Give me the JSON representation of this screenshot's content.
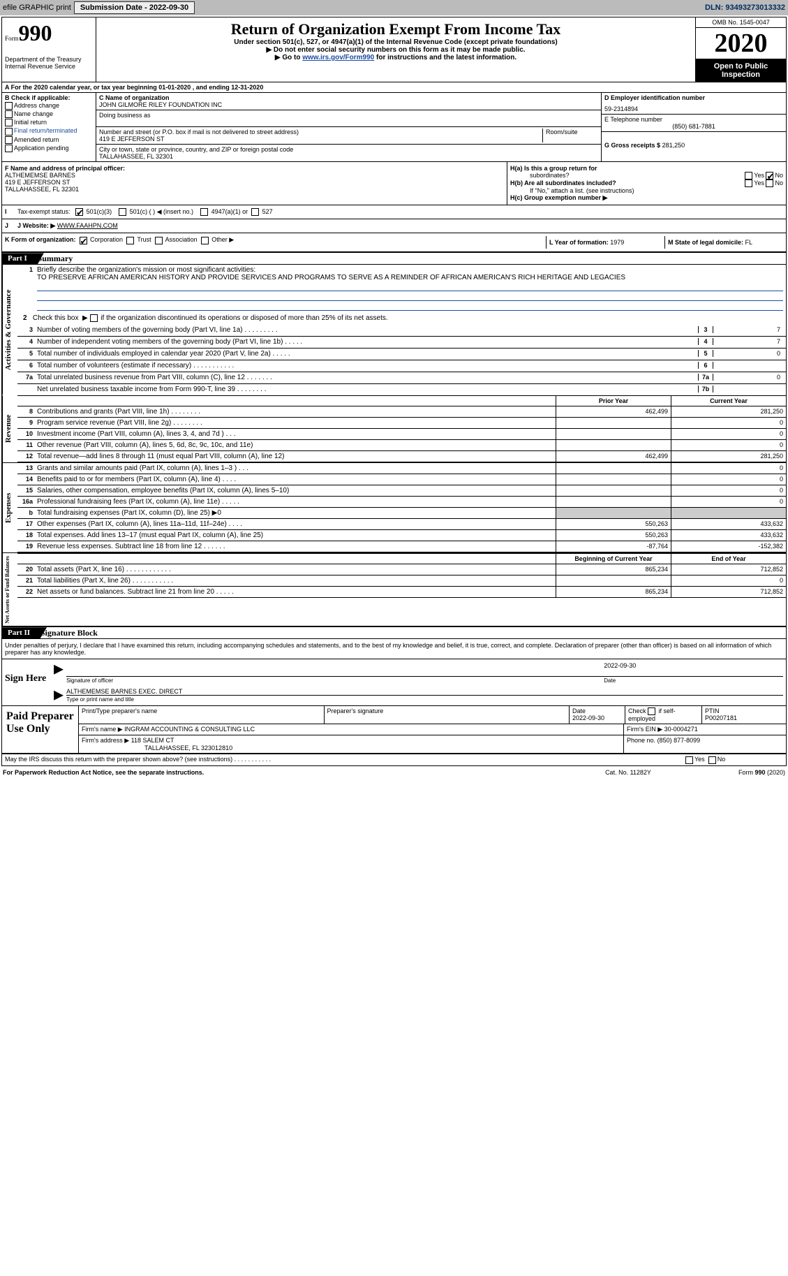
{
  "topbar": {
    "efile": "efile GRAPHIC print",
    "submission_label": "Submission Date - 2022-09-30",
    "dln_label": "DLN: 93493273013332"
  },
  "header": {
    "form_word": "Form",
    "form_num": "990",
    "dept": "Department of the Treasury",
    "irs": "Internal Revenue Service",
    "title": "Return of Organization Exempt From Income Tax",
    "subtitle": "Under section 501(c), 527, or 4947(a)(1) of the Internal Revenue Code (except private foundations)",
    "note1": "▶ Do not enter social security numbers on this form as it may be made public.",
    "note2_pre": "▶ Go to",
    "note2_link": "www.irs.gov/Form990",
    "note2_suf": "for instructions and the latest information.",
    "omb": "OMB No. 1545-0047",
    "year": "2020",
    "open": "Open to Public Inspection"
  },
  "row_a": "A For the 2020 calendar year, or tax year beginning 01-01-2020   , and ending 12-31-2020",
  "section_b": {
    "head": "B Check if applicable:",
    "opts": [
      "Address change",
      "Name change",
      "Initial return",
      "Final return/terminated",
      "Amended return",
      "Application pending"
    ],
    "pending_suffix": "pending",
    "c_name_label": "C Name of organization",
    "c_name": "JOHN GILMORE RILEY FOUNDATION INC",
    "dba": "Doing business as",
    "addr_label": "Number and street (or P.O. box if mail is not delivered to street address)",
    "room": "Room/suite",
    "addr": "419 E JEFFERSON ST",
    "city_label": "City or town, state or province, country, and ZIP or foreign postal code",
    "city": "TALLAHASSEE, FL  32301",
    "d_ein_label": "D Employer identification number",
    "d_ein": "59-2314894",
    "e_tel_label": "E Telephone number",
    "e_tel": "(850) 681-7881",
    "g_gross_label": "G Gross receipts $",
    "g_gross": "281,250"
  },
  "fh": {
    "f_label": "F Name and address of principal officer:",
    "f_name": "ALTHEMEMSE BARNES",
    "f_addr1": "419 E JEFFERSON ST",
    "f_addr2": "TALLAHASSEE, FL  32301",
    "ha_label": "H(a)  Is this a group return for",
    "ha_sub": "subordinates?",
    "hb_label": "H(b)  Are all subordinates included?",
    "hb_note": "If \"No,\" attach a list. (see instructions)",
    "hc_label": "H(c)  Group exemption number ▶",
    "yes": "Yes",
    "no": "No"
  },
  "i_row": {
    "label": "I  Tax-exempt status:",
    "opt1": "501(c)(3)",
    "opt2": "501(c) (  )  ◀ (insert no.)",
    "opt3": "4947(a)(1) or",
    "opt4": "527"
  },
  "j_row": {
    "label": "J  Website: ▶",
    "value": "WWW.FAAHPN.COM"
  },
  "k_row": {
    "label": "K Form of organization:",
    "opts": [
      "Corporation",
      "Trust",
      "Association",
      "Other ▶"
    ],
    "l_label": "L Year of formation:",
    "l_val": "1979",
    "m_label": "M State of legal domicile:",
    "m_val": "FL"
  },
  "part1": {
    "bar": "Part I",
    "title": "Summary"
  },
  "vtabs": {
    "gov": "Activities & Governance",
    "rev": "Revenue",
    "exp": "Expenses",
    "net": "Net Assets or Fund Balances"
  },
  "summary": {
    "q1_label": "1  Briefly describe the organization's mission or most significant activities:",
    "q1_text": "TO PRESERVE AFRICAN AMERICAN HISTORY AND PROVIDE SERVICES AND PROGRAMS TO SERVE AS A REMINDER OF AFRICAN AMERICAN'S RICH HERITAGE AND LEGACIES",
    "q2": "2   Check this box  ▶     if the organization discontinued its operations or disposed of more than 25% of its net assets.",
    "lines": [
      {
        "n": "3",
        "t": "Number of voting members of the governing body (Part VI, line 1a)  .  .  .  .  .  .  .  .  .",
        "box": "3",
        "v": "7"
      },
      {
        "n": "4",
        "t": "Number of independent voting members of the governing body (Part VI, line 1b)  .  .  .  .  .",
        "box": "4",
        "v": "7"
      },
      {
        "n": "5",
        "t": "Total number of individuals employed in calendar year 2020 (Part V, line 2a)  .  .  .  .  .",
        "box": "5",
        "v": "0"
      },
      {
        "n": "6",
        "t": "Total number of volunteers (estimate if necessary)  .  .  .  .  .  .  .  .  .  .  .",
        "box": "6",
        "v": ""
      },
      {
        "n": "7a",
        "t": "Total unrelated business revenue from Part VIII, column (C), line 12  .  .  .  .  .  .  .",
        "box": "7a",
        "v": "0"
      },
      {
        "n": "",
        "t": "Net unrelated business taxable income from Form 990-T, line 39  .  .  .  .  .  .  .  .",
        "box": "7b",
        "v": ""
      }
    ]
  },
  "fin_head": {
    "prior": "Prior Year",
    "current": "Current Year",
    "beg": "Beginning of Current Year",
    "end": "End of Year"
  },
  "revenue": [
    {
      "n": "8",
      "t": "Contributions and grants (Part VIII, line 1h)  .  .  .  .  .  .  .  .",
      "v1": "462,499",
      "v2": "281,250"
    },
    {
      "n": "9",
      "t": "Program service revenue (Part VIII, line 2g)  .  .  .  .  .  .  .  .",
      "v1": "",
      "v2": "0"
    },
    {
      "n": "10",
      "t": "Investment income (Part VIII, column (A), lines 3, 4, and 7d )  .  .  .",
      "v1": "",
      "v2": "0"
    },
    {
      "n": "11",
      "t": "Other revenue (Part VIII, column (A), lines 5, 6d, 8c, 9c, 10c, and 11e)",
      "v1": "",
      "v2": "0"
    },
    {
      "n": "12",
      "t": "Total revenue—add lines 8 through 11 (must equal Part VIII, column (A), line 12)",
      "v1": "462,499",
      "v2": "281,250"
    }
  ],
  "expenses": [
    {
      "n": "13",
      "t": "Grants and similar amounts paid (Part IX, column (A), lines 1–3 )  .  .  .",
      "v1": "",
      "v2": "0"
    },
    {
      "n": "14",
      "t": "Benefits paid to or for members (Part IX, column (A), line 4)  .  .  .  .",
      "v1": "",
      "v2": "0"
    },
    {
      "n": "15",
      "t": "Salaries, other compensation, employee benefits (Part IX, column (A), lines 5–10)",
      "v1": "",
      "v2": "0"
    },
    {
      "n": "16a",
      "t": "Professional fundraising fees (Part IX, column (A), line 11e)  .  .  .  .  .",
      "v1": "",
      "v2": "0"
    },
    {
      "n": "b",
      "t": "Total fundraising expenses (Part IX, column (D), line 25) ▶0",
      "v1": "shade",
      "v2": "shade"
    },
    {
      "n": "17",
      "t": "Other expenses (Part IX, column (A), lines 11a–11d, 11f–24e)  .  .  .  .",
      "v1": "550,263",
      "v2": "433,632"
    },
    {
      "n": "18",
      "t": "Total expenses. Add lines 13–17 (must equal Part IX, column (A), line 25)",
      "v1": "550,263",
      "v2": "433,632"
    },
    {
      "n": "19",
      "t": "Revenue less expenses. Subtract line 18 from line 12  .  .  .  .  .  .",
      "v1": "-87,764",
      "v2": "-152,382"
    }
  ],
  "netassets": [
    {
      "n": "20",
      "t": "Total assets (Part X, line 16)  .  .  .  .  .  .  .  .  .  .  .  .",
      "v1": "865,234",
      "v2": "712,852"
    },
    {
      "n": "21",
      "t": "Total liabilities (Part X, line 26)  .  .  .  .  .  .  .  .  .  .  .",
      "v1": "",
      "v2": "0"
    },
    {
      "n": "22",
      "t": "Net assets or fund balances. Subtract line 21 from line 20  .  .  .  .  .",
      "v1": "865,234",
      "v2": "712,852"
    }
  ],
  "part2": {
    "bar": "Part II",
    "title": "Signature Block"
  },
  "sig_intro": "Under penalties of perjury, I declare that I have examined this return, including accompanying schedules and statements, and to the best of my knowledge and belief, it is true, correct, and complete. Declaration of preparer (other than officer) is based on all information of which preparer has any knowledge.",
  "sign": {
    "here": "Sign Here",
    "sig_officer": "Signature of officer",
    "date": "Date",
    "date_val": "2022-09-30",
    "name_val": "ALTHEMEMSE BARNES  EXEC. DIRECT",
    "name_label": "Type or print name and title"
  },
  "paid": {
    "title": "Paid Preparer Use Only",
    "r1": {
      "c1": "Print/Type preparer's name",
      "c2": "Preparer's signature",
      "c3": "Date\n2022-09-30",
      "c4": "Check     if self-employed",
      "c5": "PTIN\nP00207181"
    },
    "r2": {
      "label": "Firm's name   ▶",
      "val": "INGRAM ACCOUNTING & CONSULTING LLC",
      "ein_l": "Firm's EIN ▶",
      "ein": "30-0004271"
    },
    "r3": {
      "label": "Firm's address ▶",
      "val1": "118 SALEM CT",
      "val2": "TALLAHASSEE, FL  323012810",
      "ph_l": "Phone no.",
      "ph": "(850) 877-8099"
    }
  },
  "footer": {
    "q": "May the IRS discuss this return with the preparer shown above? (see instructions)  .  .  .  .  .  .  .  .  .  .  .",
    "yes": "Yes",
    "no": "No",
    "pra": "For Paperwork Reduction Act Notice, see the separate instructions.",
    "cat": "Cat. No. 11282Y",
    "form": "Form 990 (2020)"
  }
}
